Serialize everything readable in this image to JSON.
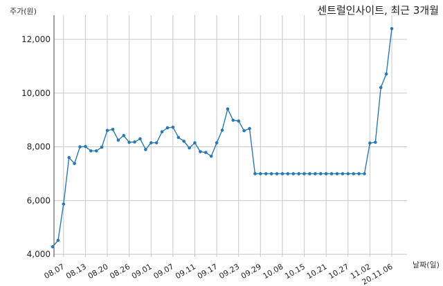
{
  "chart_data": {
    "type": "line",
    "title": "센트럴인사이트, 최근 3개월",
    "xlabel": "날짜(일)",
    "ylabel": "주가(원)",
    "ylim": [
      3900,
      12900
    ],
    "grid": true,
    "line_color": "#2878b4",
    "yticks": [
      4000,
      6000,
      8000,
      10000,
      12000
    ],
    "ytick_labels": [
      "4,000",
      "6,000",
      "8,000",
      "10,000",
      "12,000"
    ],
    "x_tick_labels": [
      "08.07",
      "08.13",
      "08.20",
      "08.26",
      "09.01",
      "09.07",
      "09.11",
      "09.17",
      "09.23",
      "09.29",
      "10.08",
      "10.15",
      "10.21",
      "10.27",
      "11.02",
      "20.11.06"
    ],
    "x_tick_indices": [
      2,
      6,
      10,
      14,
      18,
      22,
      26,
      30,
      34,
      38,
      42,
      46,
      50,
      54,
      58,
      62
    ],
    "series": [
      {
        "values": [
          4280,
          4520,
          5870,
          7600,
          7380,
          8000,
          8010,
          7850,
          7850,
          7990,
          8610,
          8650,
          8250,
          8420,
          8170,
          8180,
          8300,
          7900,
          8150,
          8150,
          8560,
          8710,
          8730,
          8350,
          8210,
          7960,
          8150,
          7820,
          7790,
          7650,
          8150,
          8620,
          9410,
          8990,
          8960,
          8600,
          8680,
          7000,
          7000,
          7000,
          7000,
          7000,
          7000,
          7000,
          7000,
          7000,
          7000,
          7000,
          7000,
          7000,
          7000,
          7000,
          7000,
          7000,
          7000,
          7000,
          7000,
          7000,
          8140,
          8170,
          10210,
          10710,
          12400
        ]
      }
    ]
  }
}
